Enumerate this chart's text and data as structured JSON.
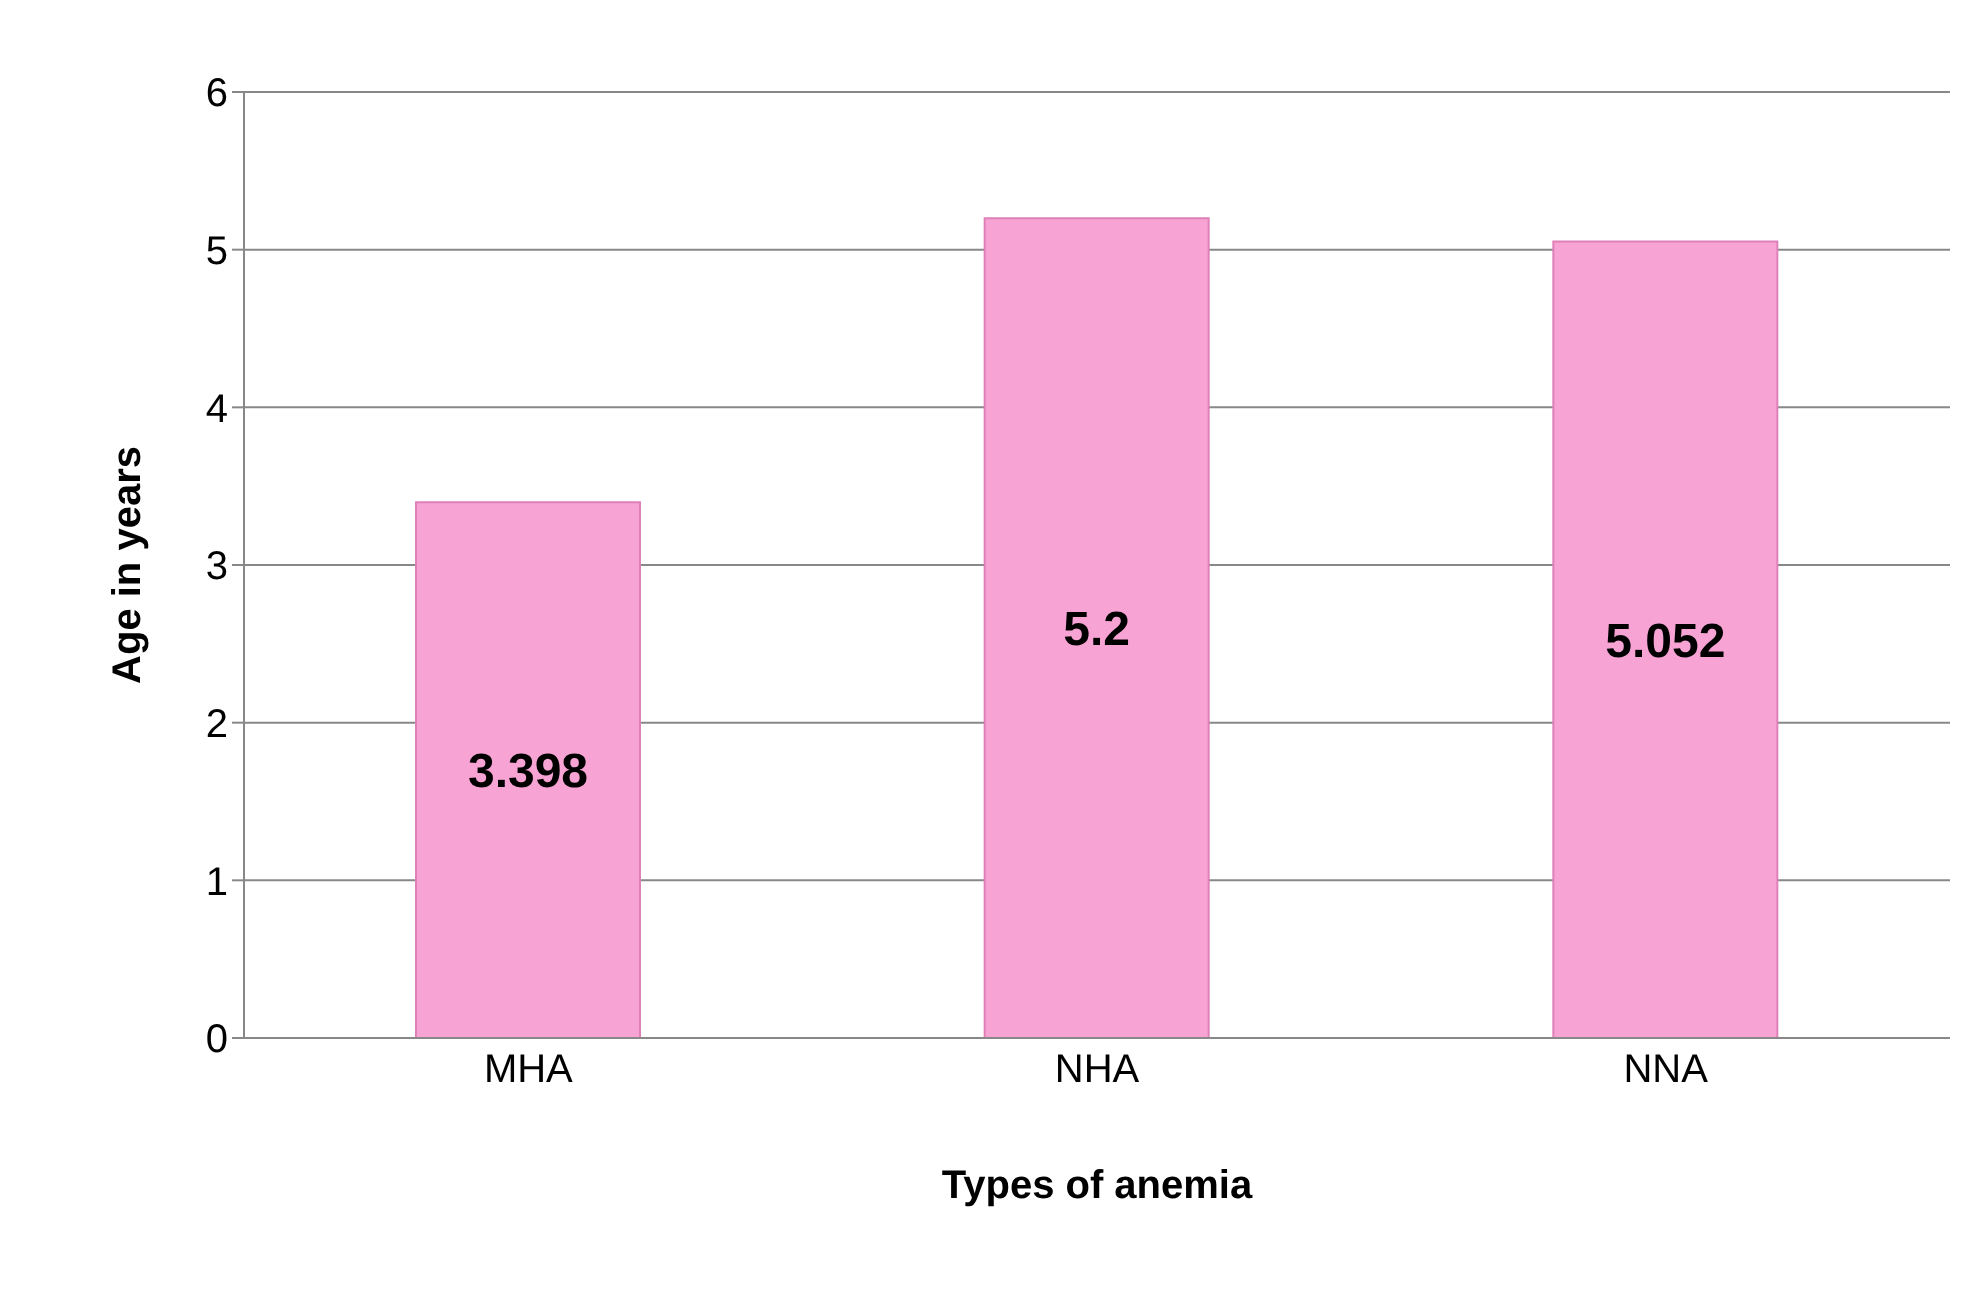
{
  "chart_data": {
    "type": "bar",
    "xlabel": "Types of anemia",
    "ylabel": "Age in years",
    "categories": [
      "MHA",
      "NHA",
      "NNA"
    ],
    "values": [
      3.398,
      5.2,
      5.052
    ],
    "color": "#f7a3d4",
    "ylim": [
      0,
      6
    ],
    "yticks": [
      0,
      1,
      2,
      3,
      4,
      5,
      6
    ],
    "grid": "y",
    "data_labels": true
  }
}
